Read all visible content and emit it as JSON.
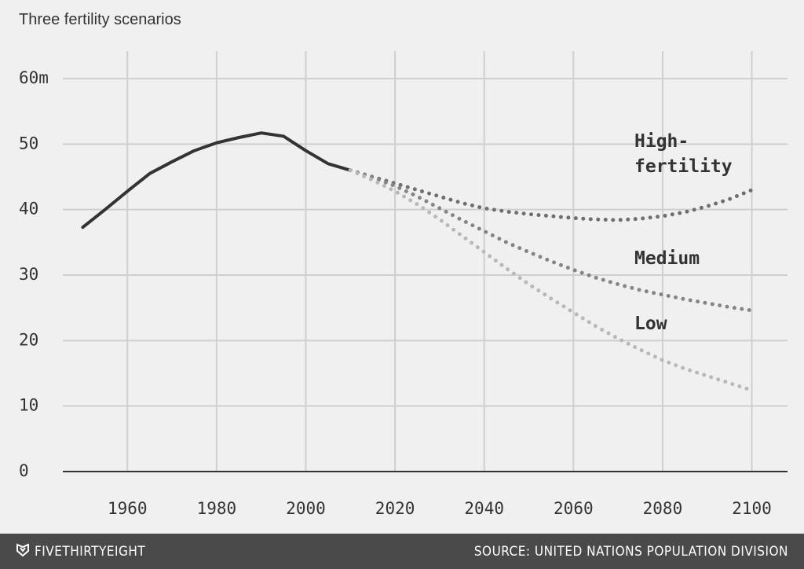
{
  "chart_data": {
    "type": "line",
    "subtitle": "Three fertility scenarios",
    "x": [
      1950,
      1955,
      1960,
      1965,
      1970,
      1975,
      1980,
      1985,
      1990,
      1995,
      2000,
      2005,
      2010,
      2015,
      2020,
      2025,
      2030,
      2035,
      2040,
      2045,
      2050,
      2055,
      2060,
      2065,
      2070,
      2075,
      2080,
      2085,
      2090,
      2095,
      2100
    ],
    "series": [
      {
        "color": "#333333",
        "dotted": false,
        "values": [
          37.3,
          40,
          42.8,
          45.5,
          47.3,
          49,
          50.2,
          51,
          51.7,
          51.2,
          49,
          47,
          46,
          null,
          null,
          null,
          null,
          null,
          null,
          null,
          null,
          null,
          null,
          null,
          null,
          null,
          null,
          null,
          null,
          null,
          null
        ]
      },
      {
        "name": "High-fertility",
        "color": "#6f6f6f",
        "dotted": true,
        "values": [
          null,
          null,
          null,
          null,
          null,
          null,
          null,
          null,
          null,
          null,
          null,
          null,
          46,
          45,
          44,
          43,
          42,
          41,
          40.2,
          39.7,
          39.3,
          39,
          38.7,
          38.5,
          38.4,
          38.6,
          39,
          39.6,
          40.5,
          41.6,
          43
        ]
      },
      {
        "name": "Medium",
        "color": "#858585",
        "dotted": true,
        "values": [
          null,
          null,
          null,
          null,
          null,
          null,
          null,
          null,
          null,
          null,
          null,
          null,
          46,
          44.9,
          43.6,
          42,
          40.2,
          38.4,
          36.7,
          35,
          33.5,
          32.1,
          30.8,
          29.6,
          28.6,
          27.7,
          27,
          26.3,
          25.7,
          25.1,
          24.6
        ]
      },
      {
        "name": "Low",
        "color": "#b8b8b8",
        "dotted": true,
        "values": [
          null,
          null,
          null,
          null,
          null,
          null,
          null,
          null,
          null,
          null,
          null,
          null,
          46,
          44.5,
          42.8,
          40.8,
          38.5,
          36,
          33.5,
          31,
          28.6,
          26.4,
          24.3,
          22.2,
          20.3,
          18.6,
          17,
          15.7,
          14.6,
          13.5,
          12.4
        ]
      }
    ],
    "xlim": [
      1942,
      2108
    ],
    "xticks": [
      1960,
      1980,
      2000,
      2020,
      2040,
      2060,
      2080,
      2100
    ],
    "ylim": [
      0,
      60
    ],
    "yticks": [
      0,
      10,
      20,
      30,
      40,
      50,
      {
        "value": 60,
        "label": "60m"
      }
    ],
    "grid": true,
    "brand": "FIVETHIRTYEIGHT",
    "source": "SOURCE: UNITED NATIONS POPULATION DIVISION"
  }
}
